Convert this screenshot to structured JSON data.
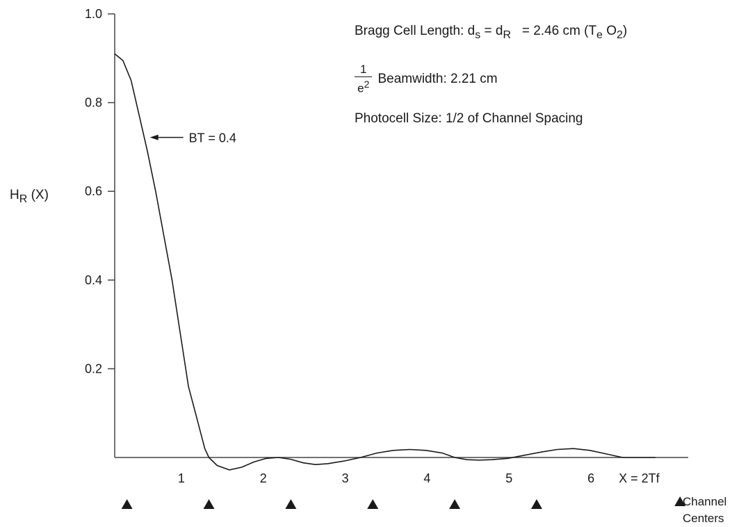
{
  "chart_data": {
    "type": "line",
    "ylabel": {
      "main": "H",
      "sub": "R",
      "tail": " (X)"
    },
    "xlabel": "X = 2Tf",
    "ylim": [
      0,
      1.0
    ],
    "xlim": [
      0,
      7
    ],
    "y_ticks": [
      "0.2",
      "0.4",
      "0.6",
      "0.8",
      "1.0"
    ],
    "y_tick_values": [
      0.2,
      0.4,
      0.6,
      0.8,
      1.0
    ],
    "x_ticks": [
      "1",
      "2",
      "3",
      "4",
      "5",
      "6"
    ],
    "x_tick_values": [
      1,
      2,
      3,
      4,
      5,
      6
    ],
    "grid": false,
    "series": [
      {
        "x": [
          0.0,
          0.1,
          0.2,
          0.3,
          0.4,
          0.5,
          0.6,
          0.7,
          0.8,
          0.9,
          1.0,
          1.1,
          1.15,
          1.25,
          1.4,
          1.55,
          1.7,
          1.85,
          2.0,
          2.15,
          2.3,
          2.45,
          2.6,
          2.8,
          3.0,
          3.2,
          3.4,
          3.6,
          3.8,
          4.0,
          4.15,
          4.3,
          4.45,
          4.6,
          4.8,
          5.0,
          5.2,
          5.4,
          5.6,
          5.8,
          6.0,
          6.2,
          6.4,
          6.6
        ],
        "y": [
          0.91,
          0.895,
          0.85,
          0.77,
          0.69,
          0.6,
          0.5,
          0.4,
          0.28,
          0.16,
          0.09,
          0.02,
          0.0,
          -0.018,
          -0.028,
          -0.022,
          -0.01,
          -0.002,
          0.0,
          -0.004,
          -0.012,
          -0.016,
          -0.014,
          -0.008,
          0.0,
          0.01,
          0.016,
          0.018,
          0.016,
          0.01,
          0.0,
          -0.005,
          -0.006,
          -0.005,
          -0.002,
          0.005,
          0.012,
          0.018,
          0.02,
          0.016,
          0.008,
          0.0,
          0.0,
          0.0
        ]
      }
    ],
    "annotations": {
      "bt": "BT = 0.4",
      "bt_point": {
        "x": 0.43,
        "y": 0.72
      },
      "bragg": {
        "prefix": "Bragg Cell Length: d",
        "s": "s",
        "mid": " = d",
        "r": "R",
        "value": "= 2.46 cm (T",
        "e": "e",
        "o": " O",
        "two": "2",
        "close": ")"
      },
      "beam": {
        "num": "1",
        "den": "e",
        "den_sup": "2",
        "text": "Beamwidth: 2.21 cm"
      },
      "photocell": "Photocell Size: 1/2 of Channel Spacing"
    },
    "channel_centers": [
      0.15,
      1.15,
      2.15,
      3.15,
      4.15,
      5.15
    ],
    "channel_label_1": "Channel",
    "channel_label_2": "Centers",
    "colors": {
      "ink": "#1a1a1a",
      "axis": "#444444"
    }
  }
}
